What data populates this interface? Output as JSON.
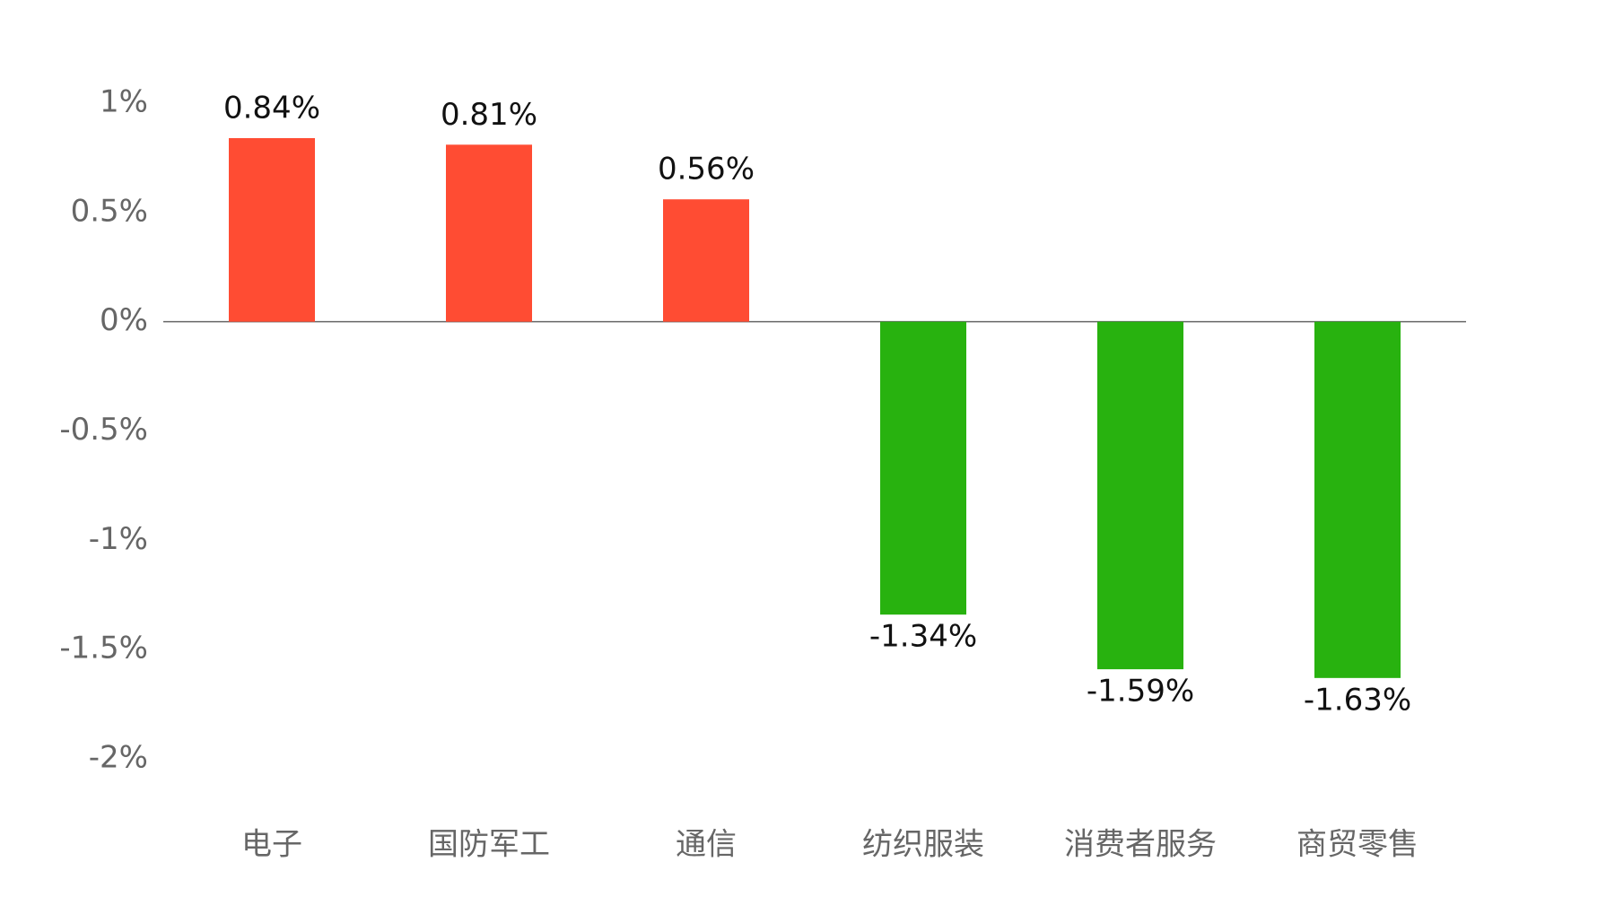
{
  "chart_data": {
    "type": "bar",
    "categories": [
      "电子",
      "国防军工",
      "通信",
      "纺织服装",
      "消费者服务",
      "商贸零售"
    ],
    "values": [
      0.84,
      0.81,
      0.56,
      -1.34,
      -1.59,
      -1.63
    ],
    "value_labels": [
      "0.84%",
      "0.81%",
      "0.56%",
      "-1.34%",
      "-1.59%",
      "-1.63%"
    ],
    "colors": [
      "#ff4c33",
      "#ff4c33",
      "#ff4c33",
      "#28b20f",
      "#28b20f",
      "#28b20f"
    ],
    "ylim": [
      -2,
      1
    ],
    "yticks": [
      {
        "value": 1,
        "label": "1%"
      },
      {
        "value": 0.5,
        "label": "0.5%"
      },
      {
        "value": 0,
        "label": "0%"
      },
      {
        "value": -0.5,
        "label": "-0.5%"
      },
      {
        "value": -1,
        "label": "-1%"
      },
      {
        "value": -1.5,
        "label": "-1.5%"
      },
      {
        "value": -2,
        "label": "-2%"
      }
    ],
    "grid": false
  }
}
